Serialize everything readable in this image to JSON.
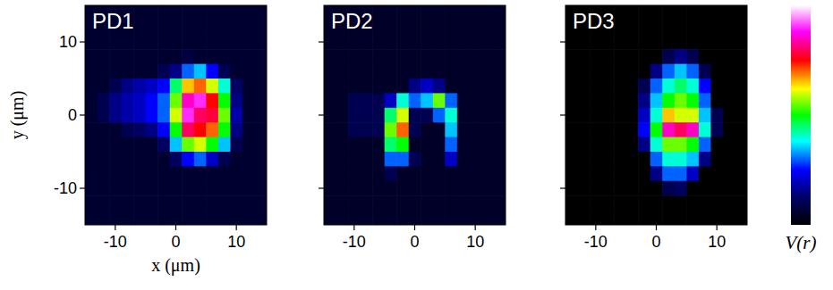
{
  "chart_data": [
    {
      "type": "heatmap",
      "title": "PD1",
      "x_label": "x (μm)",
      "y_label": "y (μm)",
      "xlim": [
        -15,
        15
      ],
      "ylim": [
        -15,
        15
      ],
      "xticks": [
        -10,
        0,
        10
      ],
      "yticks": [
        -10,
        0,
        10
      ],
      "color_range": [
        0,
        1
      ],
      "x": [
        -14,
        -12,
        -10,
        -8,
        -6,
        -4,
        -2,
        0,
        2,
        4,
        6,
        8,
        10,
        12,
        14
      ],
      "y": [
        14,
        12,
        10,
        8,
        6,
        4,
        2,
        0,
        -2,
        -4,
        -6,
        -8,
        -10,
        -12,
        -14
      ],
      "cells": [
        [
          0.06,
          0.06,
          0.06,
          0.06,
          0.06,
          0.06,
          0.06,
          0.06,
          0.06,
          0.06,
          0.06,
          0.06,
          0.06,
          0.06,
          0.06
        ],
        [
          0.06,
          0.06,
          0.06,
          0.06,
          0.06,
          0.06,
          0.06,
          0.06,
          0.06,
          0.06,
          0.06,
          0.06,
          0.06,
          0.06,
          0.06
        ],
        [
          0.06,
          0.06,
          0.06,
          0.06,
          0.06,
          0.06,
          0.06,
          0.06,
          0.06,
          0.06,
          0.06,
          0.06,
          0.06,
          0.06,
          0.06
        ],
        [
          0.06,
          0.06,
          0.06,
          0.06,
          0.06,
          0.06,
          0.06,
          0.06,
          0.08,
          0.06,
          0.06,
          0.06,
          0.06,
          0.06,
          0.06
        ],
        [
          0.06,
          0.06,
          0.06,
          0.06,
          0.06,
          0.06,
          0.1,
          0.15,
          0.3,
          0.35,
          0.25,
          0.1,
          0.06,
          0.06,
          0.06
        ],
        [
          0.06,
          0.06,
          0.1,
          0.15,
          0.18,
          0.2,
          0.25,
          0.45,
          0.65,
          0.7,
          0.6,
          0.4,
          0.12,
          0.06,
          0.06
        ],
        [
          0.06,
          0.1,
          0.15,
          0.18,
          0.2,
          0.25,
          0.3,
          0.55,
          0.85,
          0.9,
          0.75,
          0.5,
          0.15,
          0.06,
          0.06
        ],
        [
          0.06,
          0.1,
          0.15,
          0.18,
          0.2,
          0.25,
          0.3,
          0.6,
          0.9,
          0.8,
          0.78,
          0.55,
          0.18,
          0.06,
          0.06
        ],
        [
          0.06,
          0.06,
          0.06,
          0.1,
          0.12,
          0.15,
          0.25,
          0.5,
          0.8,
          0.75,
          0.7,
          0.5,
          0.15,
          0.06,
          0.06
        ],
        [
          0.06,
          0.06,
          0.06,
          0.06,
          0.06,
          0.06,
          0.12,
          0.35,
          0.55,
          0.6,
          0.5,
          0.35,
          0.1,
          0.06,
          0.06
        ],
        [
          0.06,
          0.06,
          0.06,
          0.06,
          0.06,
          0.06,
          0.06,
          0.12,
          0.25,
          0.3,
          0.2,
          0.1,
          0.06,
          0.06,
          0.06
        ],
        [
          0.06,
          0.06,
          0.06,
          0.06,
          0.06,
          0.06,
          0.06,
          0.06,
          0.06,
          0.06,
          0.06,
          0.06,
          0.06,
          0.06,
          0.06
        ],
        [
          0.06,
          0.06,
          0.06,
          0.06,
          0.06,
          0.06,
          0.06,
          0.06,
          0.06,
          0.06,
          0.06,
          0.06,
          0.06,
          0.06,
          0.06
        ],
        [
          0.06,
          0.06,
          0.06,
          0.06,
          0.06,
          0.06,
          0.06,
          0.06,
          0.06,
          0.06,
          0.06,
          0.06,
          0.06,
          0.06,
          0.06
        ],
        [
          0.06,
          0.06,
          0.06,
          0.06,
          0.06,
          0.06,
          0.06,
          0.06,
          0.06,
          0.06,
          0.06,
          0.06,
          0.06,
          0.06,
          0.06
        ]
      ]
    },
    {
      "type": "heatmap",
      "title": "PD2",
      "tick_labels": "x",
      "xlim": [
        -15,
        15
      ],
      "ylim": [
        -15,
        15
      ],
      "xticks": [
        -10,
        0,
        10
      ],
      "yticks": [
        -10,
        0,
        10
      ],
      "color_range": [
        0,
        1
      ],
      "x": [
        -14,
        -12,
        -10,
        -8,
        -6,
        -4,
        -2,
        0,
        2,
        4,
        6,
        8,
        10,
        12,
        14
      ],
      "y": [
        14,
        12,
        10,
        8,
        6,
        4,
        2,
        0,
        -2,
        -4,
        -6,
        -8,
        -10,
        -12,
        -14
      ],
      "cells": [
        [
          0.05,
          0.05,
          0.05,
          0.05,
          0.05,
          0.05,
          0.05,
          0.05,
          0.05,
          0.05,
          0.05,
          0.05,
          0.05,
          0.05,
          0.05
        ],
        [
          0.05,
          0.05,
          0.05,
          0.05,
          0.05,
          0.05,
          0.05,
          0.05,
          0.05,
          0.05,
          0.05,
          0.05,
          0.05,
          0.05,
          0.05
        ],
        [
          0.05,
          0.05,
          0.05,
          0.05,
          0.05,
          0.05,
          0.05,
          0.05,
          0.05,
          0.05,
          0.05,
          0.05,
          0.05,
          0.05,
          0.05
        ],
        [
          0.05,
          0.05,
          0.05,
          0.05,
          0.05,
          0.05,
          0.05,
          0.05,
          0.05,
          0.05,
          0.05,
          0.05,
          0.05,
          0.05,
          0.05
        ],
        [
          0.05,
          0.05,
          0.05,
          0.05,
          0.05,
          0.05,
          0.05,
          0.05,
          0.05,
          0.05,
          0.05,
          0.05,
          0.05,
          0.05,
          0.05
        ],
        [
          0.05,
          0.05,
          0.05,
          0.05,
          0.05,
          0.05,
          0.05,
          0.15,
          0.2,
          0.15,
          0.05,
          0.05,
          0.05,
          0.05,
          0.05
        ],
        [
          0.05,
          0.05,
          0.1,
          0.1,
          0.1,
          0.2,
          0.4,
          0.3,
          0.35,
          0.55,
          0.3,
          0.05,
          0.05,
          0.05,
          0.05
        ],
        [
          0.05,
          0.05,
          0.1,
          0.1,
          0.1,
          0.45,
          0.6,
          0.1,
          0.1,
          0.3,
          0.4,
          0.05,
          0.05,
          0.05,
          0.05
        ],
        [
          0.05,
          0.05,
          0.1,
          0.1,
          0.1,
          0.55,
          0.7,
          0.1,
          0.05,
          0.05,
          0.35,
          0.05,
          0.05,
          0.05,
          0.05
        ],
        [
          0.05,
          0.05,
          0.05,
          0.05,
          0.05,
          0.45,
          0.5,
          0.05,
          0.05,
          0.05,
          0.3,
          0.05,
          0.05,
          0.05,
          0.05
        ],
        [
          0.05,
          0.05,
          0.05,
          0.05,
          0.05,
          0.3,
          0.3,
          0.1,
          0.05,
          0.05,
          0.2,
          0.05,
          0.05,
          0.05,
          0.05
        ],
        [
          0.05,
          0.05,
          0.05,
          0.05,
          0.05,
          0.1,
          0.05,
          0.05,
          0.05,
          0.05,
          0.05,
          0.05,
          0.05,
          0.05,
          0.05
        ],
        [
          0.05,
          0.05,
          0.05,
          0.05,
          0.05,
          0.05,
          0.05,
          0.05,
          0.05,
          0.05,
          0.05,
          0.05,
          0.05,
          0.05,
          0.05
        ],
        [
          0.05,
          0.05,
          0.05,
          0.05,
          0.05,
          0.05,
          0.05,
          0.05,
          0.05,
          0.05,
          0.05,
          0.05,
          0.05,
          0.05,
          0.05
        ],
        [
          0.05,
          0.05,
          0.05,
          0.05,
          0.05,
          0.05,
          0.05,
          0.05,
          0.05,
          0.05,
          0.05,
          0.05,
          0.05,
          0.05,
          0.05
        ]
      ]
    },
    {
      "type": "heatmap",
      "title": "PD3",
      "tick_labels": "x",
      "colorbar_label": "V(r)",
      "xlim": [
        -15,
        15
      ],
      "ylim": [
        -15,
        15
      ],
      "xticks": [
        -10,
        0,
        10
      ],
      "yticks": [
        -10,
        0,
        10
      ],
      "color_range": [
        0,
        1
      ],
      "x": [
        -14,
        -12,
        -10,
        -8,
        -6,
        -4,
        -2,
        0,
        2,
        4,
        6,
        8,
        10,
        12,
        14
      ],
      "y": [
        14,
        12,
        10,
        8,
        6,
        4,
        2,
        0,
        -2,
        -4,
        -6,
        -8,
        -10,
        -12,
        -14
      ],
      "cells": [
        [
          0,
          0,
          0,
          0,
          0,
          0,
          0,
          0,
          0,
          0,
          0,
          0,
          0,
          0,
          0
        ],
        [
          0,
          0,
          0,
          0,
          0,
          0,
          0,
          0,
          0,
          0,
          0,
          0,
          0,
          0,
          0
        ],
        [
          0,
          0,
          0,
          0,
          0,
          0,
          0,
          0,
          0,
          0,
          0,
          0,
          0,
          0,
          0
        ],
        [
          0,
          0,
          0,
          0,
          0,
          0,
          0,
          0,
          0.1,
          0.15,
          0.1,
          0,
          0,
          0,
          0
        ],
        [
          0,
          0,
          0,
          0,
          0,
          0,
          0,
          0.15,
          0.3,
          0.35,
          0.3,
          0.1,
          0,
          0,
          0
        ],
        [
          0,
          0,
          0,
          0,
          0,
          0,
          0.1,
          0.3,
          0.4,
          0.45,
          0.4,
          0.25,
          0,
          0,
          0
        ],
        [
          0,
          0,
          0,
          0,
          0,
          0,
          0.15,
          0.35,
          0.5,
          0.55,
          0.5,
          0.3,
          0,
          0,
          0
        ],
        [
          0,
          0,
          0,
          0,
          0,
          0,
          0.2,
          0.4,
          0.65,
          0.6,
          0.6,
          0.35,
          0.1,
          0,
          0
        ],
        [
          0,
          0,
          0,
          0,
          0,
          0,
          0.25,
          0.5,
          0.85,
          0.8,
          0.85,
          0.4,
          0.1,
          0,
          0
        ],
        [
          0,
          0,
          0,
          0,
          0,
          0,
          0.15,
          0.4,
          0.55,
          0.55,
          0.5,
          0.3,
          0,
          0,
          0
        ],
        [
          0,
          0,
          0,
          0,
          0,
          0,
          0,
          0.3,
          0.4,
          0.4,
          0.35,
          0.15,
          0,
          0,
          0
        ],
        [
          0,
          0,
          0,
          0,
          0,
          0,
          0,
          0.15,
          0.3,
          0.3,
          0.2,
          0,
          0,
          0,
          0
        ],
        [
          0,
          0,
          0,
          0,
          0,
          0,
          0,
          0,
          0.1,
          0.12,
          0,
          0,
          0,
          0,
          0
        ],
        [
          0,
          0,
          0,
          0,
          0,
          0,
          0,
          0,
          0,
          0,
          0,
          0,
          0,
          0,
          0
        ],
        [
          0,
          0,
          0,
          0,
          0,
          0,
          0,
          0,
          0,
          0,
          0,
          0,
          0,
          0,
          0
        ]
      ]
    }
  ]
}
